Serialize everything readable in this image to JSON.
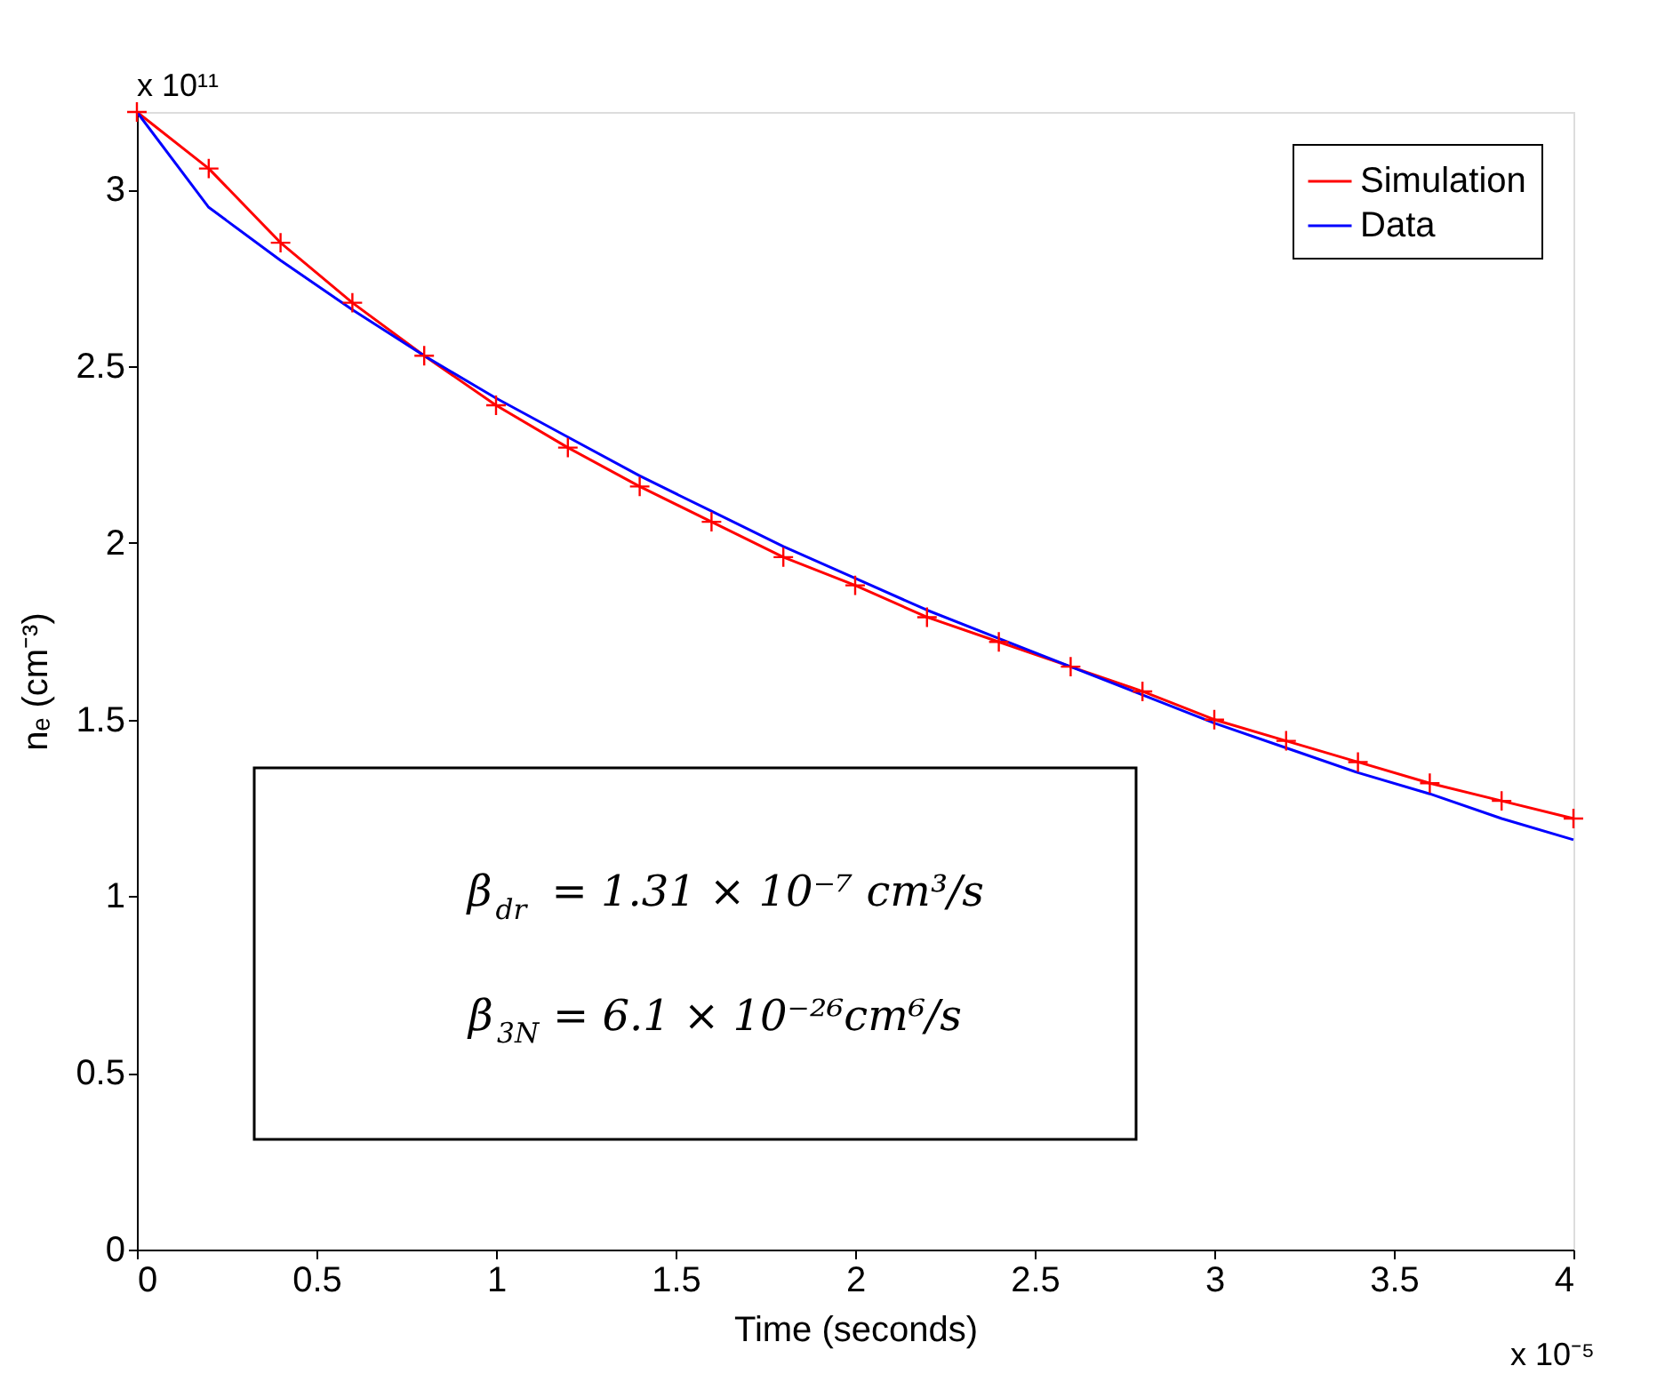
{
  "chart_data": {
    "type": "line",
    "xlabel": "Time (seconds)",
    "ylabel": "nₑ (cm⁻³)",
    "x": [
      0,
      0.2,
      0.4,
      0.6,
      0.8,
      1.0,
      1.2,
      1.4,
      1.6,
      1.8,
      2.0,
      2.2,
      2.4,
      2.6,
      2.8,
      3.0,
      3.2,
      3.4,
      3.6,
      3.8,
      4.0
    ],
    "series": [
      {
        "name": "Simulation",
        "color": "#ff0000",
        "marker": "cross",
        "values": [
          3.22,
          3.06,
          2.85,
          2.68,
          2.53,
          2.39,
          2.27,
          2.16,
          2.06,
          1.96,
          1.88,
          1.79,
          1.72,
          1.65,
          1.58,
          1.5,
          1.44,
          1.38,
          1.32,
          1.27,
          1.22
        ]
      },
      {
        "name": "Data",
        "color": "#0000ff",
        "marker": "none",
        "values": [
          3.22,
          2.95,
          2.8,
          2.66,
          2.53,
          2.41,
          2.3,
          2.19,
          2.09,
          1.99,
          1.9,
          1.81,
          1.73,
          1.65,
          1.57,
          1.49,
          1.42,
          1.35,
          1.29,
          1.22,
          1.16
        ]
      }
    ],
    "xlim": [
      0,
      4
    ],
    "xticks": [
      0,
      0.5,
      1,
      1.5,
      2,
      2.5,
      3,
      3.5,
      4
    ],
    "ylim": [
      0,
      3.22
    ],
    "yticks": [
      0,
      0.5,
      1,
      1.5,
      2,
      2.5,
      3
    ],
    "grid": false,
    "legend": "top right",
    "line_style": "solid",
    "annotations": [
      "x 10¹¹",
      "x 10⁻⁵",
      "β$_{dr}$ = 1.31 × 10⁻⁷ cm³/s",
      "β$_{3N}$ = 6.1 × 10⁻²⁶cm⁶/s"
    ]
  }
}
